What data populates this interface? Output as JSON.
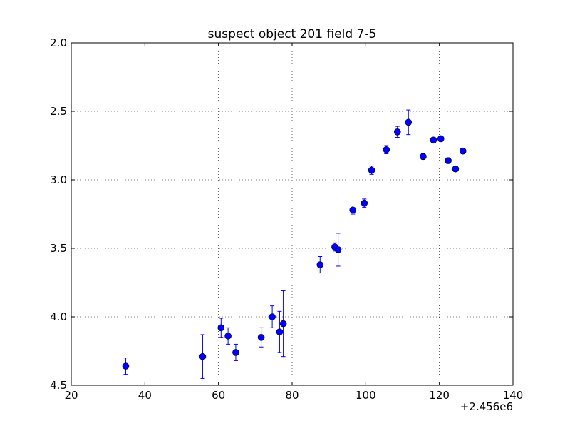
{
  "chart_data": {
    "type": "scatter",
    "title": "suspect object 201 field 7-5",
    "xlabel": "",
    "ylabel": "",
    "x_offset_label": "+2.456e6",
    "xlim": [
      20,
      140
    ],
    "ylim": [
      4.5,
      2.0
    ],
    "y_inverted": true,
    "grid": true,
    "x_ticks": [
      "20",
      "40",
      "60",
      "80",
      "100",
      "120",
      "140"
    ],
    "y_ticks": [
      "2.0",
      "2.5",
      "3.0",
      "3.5",
      "4.0",
      "4.5"
    ],
    "marker_color": "#0000ff",
    "errorbar_color": "#0000ff",
    "series": [
      {
        "points": [
          {
            "x": 34.8,
            "y": 4.36,
            "err": 0.06
          },
          {
            "x": 55.7,
            "y": 4.29,
            "err": 0.16
          },
          {
            "x": 60.7,
            "y": 4.08,
            "err": 0.07
          },
          {
            "x": 62.6,
            "y": 4.14,
            "err": 0.06
          },
          {
            "x": 64.7,
            "y": 4.26,
            "err": 0.06
          },
          {
            "x": 71.6,
            "y": 4.15,
            "err": 0.07
          },
          {
            "x": 74.6,
            "y": 4.0,
            "err": 0.08
          },
          {
            "x": 76.6,
            "y": 4.11,
            "err": 0.15
          },
          {
            "x": 77.6,
            "y": 4.05,
            "err": 0.24
          },
          {
            "x": 87.6,
            "y": 3.62,
            "err": 0.06
          },
          {
            "x": 91.6,
            "y": 3.49,
            "err": 0.03
          },
          {
            "x": 92.5,
            "y": 3.51,
            "err": 0.12
          },
          {
            "x": 96.5,
            "y": 3.22,
            "err": 0.03
          },
          {
            "x": 99.6,
            "y": 3.17,
            "err": 0.03
          },
          {
            "x": 101.6,
            "y": 2.93,
            "err": 0.03
          },
          {
            "x": 105.6,
            "y": 2.78,
            "err": 0.03
          },
          {
            "x": 108.6,
            "y": 2.65,
            "err": 0.04
          },
          {
            "x": 111.6,
            "y": 2.58,
            "err": 0.09
          },
          {
            "x": 115.6,
            "y": 2.83,
            "err": 0.02
          },
          {
            "x": 118.4,
            "y": 2.71,
            "err": 0.02
          },
          {
            "x": 120.4,
            "y": 2.7,
            "err": 0.02
          },
          {
            "x": 122.4,
            "y": 2.86,
            "err": 0.02
          },
          {
            "x": 124.4,
            "y": 2.92,
            "err": 0.02
          },
          {
            "x": 126.4,
            "y": 2.79,
            "err": 0.02
          }
        ]
      }
    ]
  }
}
